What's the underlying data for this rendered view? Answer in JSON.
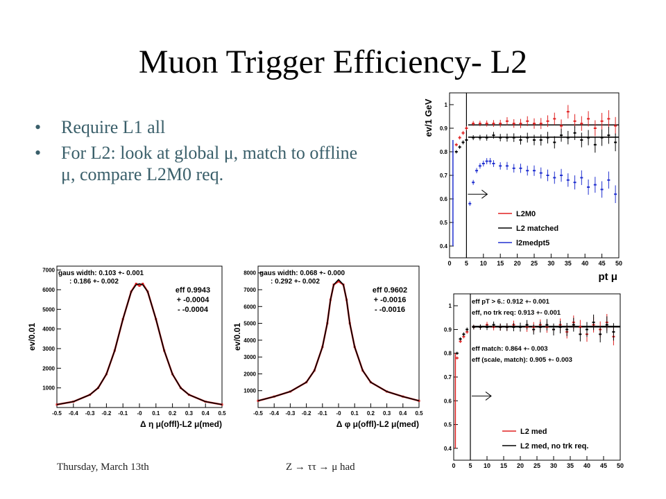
{
  "slide": {
    "title": "Muon Trigger Efficiency- L2",
    "bullets": [
      "Require L1 all",
      "For L2: look at global μ, match to offline μ, compare L2M0 req."
    ],
    "footer_left": "Thursday, March 13th",
    "footer_center": "Z  →  ττ  →  μ had"
  },
  "chart_data": [
    {
      "type": "line",
      "ylabel": "ev/0.01",
      "xlabel": "Δ η  μ(offl)-L2 μ(med)",
      "xlim": [
        -0.5,
        0.5
      ],
      "ylim": [
        0,
        7200
      ],
      "xticks": [
        -0.5,
        -0.4,
        -0.3,
        -0.2,
        -0.1,
        -0.0,
        0.1,
        0.2,
        0.3,
        0.4,
        0.5
      ],
      "xtick_labels": [
        "-0.5",
        "-0.4",
        "-0.3",
        "-0.2",
        "-0.1",
        "-0",
        "0.1",
        "0.2",
        "0.3",
        "0.4",
        "0.5"
      ],
      "yticks": [
        1000,
        2000,
        3000,
        4000,
        5000,
        6000,
        7000
      ],
      "annotations": [
        "gaus width: 0.103 +- 0.001",
        ": 0.186 +- 0.002",
        "eff 0.9943",
        "+ -0.0004",
        "- -0.0004"
      ],
      "series": [
        {
          "color": "#d62020",
          "x": [
            -0.5,
            -0.4,
            -0.3,
            -0.25,
            -0.2,
            -0.15,
            -0.1,
            -0.05,
            -0.02,
            0,
            0.02,
            0.05,
            0.1,
            0.15,
            0.2,
            0.25,
            0.3,
            0.4,
            0.5
          ],
          "values": [
            150,
            300,
            650,
            1000,
            1700,
            2900,
            4500,
            5900,
            6300,
            6200,
            6300,
            5900,
            4500,
            2900,
            1700,
            1000,
            650,
            300,
            150
          ]
        },
        {
          "color": "#000000",
          "x": [
            -0.5,
            -0.4,
            -0.3,
            -0.25,
            -0.2,
            -0.15,
            -0.1,
            -0.05,
            -0.02,
            0,
            0.02,
            0.05,
            0.1,
            0.15,
            0.2,
            0.25,
            0.3,
            0.4,
            0.5
          ],
          "values": [
            150,
            300,
            650,
            1000,
            1700,
            2900,
            4500,
            5900,
            6250,
            6300,
            6250,
            5900,
            4500,
            2900,
            1700,
            1000,
            650,
            300,
            150
          ]
        }
      ]
    },
    {
      "type": "line",
      "ylabel": "ev/0.01",
      "xlabel": "Δ φ  μ(offl)-L2 μ(med)",
      "xlim": [
        -0.5,
        0.5
      ],
      "ylim": [
        0,
        8400
      ],
      "xticks": [
        -0.5,
        -0.4,
        -0.3,
        -0.2,
        -0.1,
        -0.0,
        0.1,
        0.2,
        0.3,
        0.4,
        0.5
      ],
      "xtick_labels": [
        "-0.5",
        "-0.4",
        "-0.3",
        "-0.2",
        "-0.1",
        "-0",
        "0.1",
        "0.2",
        "0.3",
        "0.4",
        "0.5"
      ],
      "yticks": [
        1000,
        2000,
        3000,
        4000,
        5000,
        6000,
        7000,
        8000
      ],
      "annotations": [
        "gaus width: 0.068 +- 0.000",
        ": 0.292 +- 0.002",
        "eff 0.9602",
        "+ -0.0016",
        "- -0.0016"
      ],
      "series": [
        {
          "color": "#d62020",
          "x": [
            -0.5,
            -0.4,
            -0.3,
            -0.2,
            -0.15,
            -0.1,
            -0.07,
            -0.05,
            -0.03,
            0,
            0.03,
            0.05,
            0.07,
            0.1,
            0.15,
            0.2,
            0.3,
            0.4,
            0.5
          ],
          "values": [
            400,
            650,
            950,
            1500,
            2200,
            3600,
            5000,
            6400,
            7300,
            7500,
            7300,
            6400,
            5000,
            3600,
            2200,
            1500,
            950,
            650,
            400
          ]
        },
        {
          "color": "#000000",
          "x": [
            -0.5,
            -0.4,
            -0.3,
            -0.2,
            -0.15,
            -0.1,
            -0.07,
            -0.05,
            -0.03,
            0,
            0.03,
            0.05,
            0.07,
            0.1,
            0.15,
            0.2,
            0.3,
            0.4,
            0.5
          ],
          "values": [
            400,
            650,
            950,
            1500,
            2200,
            3600,
            5000,
            6400,
            7300,
            7600,
            7300,
            6400,
            5000,
            3600,
            2200,
            1500,
            950,
            650,
            400
          ]
        }
      ]
    },
    {
      "type": "scatter",
      "ylabel": "ev/1 GeV",
      "xlabel": "pt  μ",
      "xlim": [
        0,
        50
      ],
      "ylim": [
        0.35,
        1.05
      ],
      "xticks": [
        0,
        5,
        10,
        15,
        20,
        25,
        30,
        35,
        40,
        45,
        50
      ],
      "yticks": [
        0.4,
        0.5,
        0.6,
        0.7,
        0.8,
        0.9,
        1
      ],
      "legend": [
        "L2M0",
        "L2 matched",
        "l2medpt5"
      ],
      "legend_position": "bottom-right",
      "series": [
        {
          "name": "L2M0",
          "color": "#e02020",
          "x": [
            2,
            3,
            4,
            5,
            7,
            9,
            11,
            13,
            15,
            17,
            19,
            21,
            23,
            25,
            27,
            29,
            31,
            33,
            35,
            37,
            39,
            41,
            43,
            45,
            47,
            49
          ],
          "values": [
            0.83,
            0.86,
            0.88,
            0.9,
            0.92,
            0.92,
            0.92,
            0.92,
            0.92,
            0.93,
            0.92,
            0.92,
            0.93,
            0.92,
            0.92,
            0.93,
            0.94,
            0.91,
            0.97,
            0.93,
            0.92,
            0.94,
            0.9,
            0.93,
            0.94,
            0.91
          ]
        },
        {
          "name": "L2 matched",
          "color": "#000000",
          "x": [
            2,
            3,
            4,
            5,
            7,
            9,
            11,
            13,
            15,
            17,
            19,
            21,
            23,
            25,
            27,
            29,
            31,
            33,
            35,
            37,
            39,
            41,
            43,
            45,
            47,
            49
          ],
          "values": [
            0.8,
            0.82,
            0.84,
            0.85,
            0.86,
            0.86,
            0.86,
            0.87,
            0.86,
            0.86,
            0.86,
            0.85,
            0.86,
            0.85,
            0.85,
            0.86,
            0.84,
            0.87,
            0.86,
            0.88,
            0.85,
            0.86,
            0.83,
            0.86,
            0.87,
            0.84
          ]
        },
        {
          "name": "l2medpt5",
          "color": "#2030d0",
          "x": [
            6,
            7,
            8,
            9,
            10,
            11,
            12,
            13,
            15,
            17,
            19,
            21,
            23,
            25,
            27,
            29,
            31,
            33,
            35,
            37,
            39,
            41,
            43,
            45,
            47,
            49
          ],
          "values": [
            0.58,
            0.67,
            0.72,
            0.74,
            0.75,
            0.76,
            0.76,
            0.75,
            0.74,
            0.74,
            0.73,
            0.73,
            0.72,
            0.72,
            0.71,
            0.7,
            0.69,
            0.7,
            0.68,
            0.67,
            0.69,
            0.65,
            0.66,
            0.64,
            0.68,
            0.62
          ]
        }
      ],
      "reference_line_x": 5
    },
    {
      "type": "scatter",
      "ylabel": "",
      "xlabel": "",
      "xlim": [
        0,
        50
      ],
      "ylim": [
        0.35,
        1.05
      ],
      "xticks": [
        0,
        5,
        10,
        15,
        20,
        25,
        30,
        35,
        40,
        45,
        50
      ],
      "yticks": [
        0.4,
        0.5,
        0.6,
        0.7,
        0.8,
        0.9,
        1
      ],
      "annotations": [
        "eff pT > 6.: 0.912 +- 0.001",
        "eff, no trk req: 0.913 +- 0.001",
        "eff match: 0.864 +- 0.003",
        "eff (scale, match): 0.905 +- 0.003"
      ],
      "legend": [
        "L2 med",
        "L2 med, no trk req."
      ],
      "legend_position": "bottom-right",
      "series": [
        {
          "name": "L2 med",
          "color": "#e02020",
          "x": [
            1,
            2,
            3,
            4,
            6,
            8,
            10,
            12,
            14,
            16,
            18,
            20,
            22,
            24,
            26,
            28,
            30,
            32,
            34,
            36,
            38,
            40,
            42,
            44,
            46,
            48
          ],
          "values": [
            0.78,
            0.85,
            0.87,
            0.89,
            0.91,
            0.91,
            0.92,
            0.91,
            0.91,
            0.91,
            0.92,
            0.91,
            0.91,
            0.91,
            0.92,
            0.91,
            0.9,
            0.92,
            0.89,
            0.93,
            0.91,
            0.88,
            0.92,
            0.9,
            0.93,
            0.87
          ]
        },
        {
          "name": "L2 med, no trk req.",
          "color": "#000000",
          "x": [
            1,
            2,
            3,
            4,
            6,
            8,
            10,
            12,
            14,
            16,
            18,
            20,
            22,
            24,
            26,
            28,
            30,
            32,
            34,
            36,
            38,
            40,
            42,
            44,
            46,
            48
          ],
          "values": [
            0.8,
            0.86,
            0.88,
            0.9,
            0.91,
            0.91,
            0.91,
            0.92,
            0.91,
            0.91,
            0.91,
            0.91,
            0.92,
            0.9,
            0.91,
            0.92,
            0.9,
            0.91,
            0.9,
            0.92,
            0.88,
            0.9,
            0.93,
            0.88,
            0.92,
            0.89
          ]
        }
      ],
      "reference_line_x": 5
    }
  ]
}
